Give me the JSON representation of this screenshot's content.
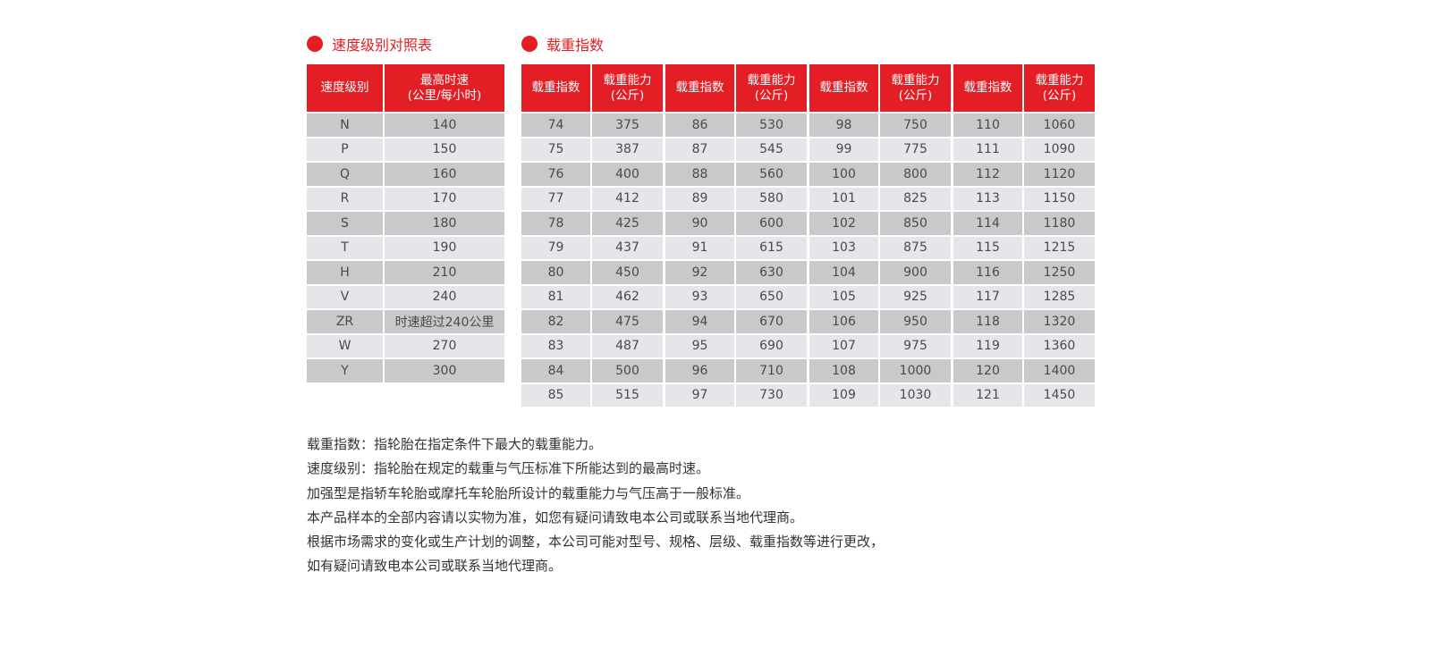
{
  "colors": {
    "accent": "#e31e24",
    "row_dark": "#c9c8cb",
    "row_light": "#e6e5e9"
  },
  "speed": {
    "title": "速度级别对照表",
    "headers": [
      "速度级别",
      "最高时速\n(公里/每小时)"
    ],
    "rows": [
      [
        "N",
        "140"
      ],
      [
        "P",
        "150"
      ],
      [
        "Q",
        "160"
      ],
      [
        "R",
        "170"
      ],
      [
        "S",
        "180"
      ],
      [
        "T",
        "190"
      ],
      [
        "H",
        "210"
      ],
      [
        "V",
        "240"
      ],
      [
        "ZR",
        "时速超过240公里"
      ],
      [
        "W",
        "270"
      ],
      [
        "Y",
        "300"
      ]
    ]
  },
  "load": {
    "title": "载重指数",
    "headers": [
      "载重指数",
      "载重能力\n(公斤)"
    ],
    "tables": [
      [
        [
          "74",
          "375"
        ],
        [
          "75",
          "387"
        ],
        [
          "76",
          "400"
        ],
        [
          "77",
          "412"
        ],
        [
          "78",
          "425"
        ],
        [
          "79",
          "437"
        ],
        [
          "80",
          "450"
        ],
        [
          "81",
          "462"
        ],
        [
          "82",
          "475"
        ],
        [
          "83",
          "487"
        ],
        [
          "84",
          "500"
        ],
        [
          "85",
          "515"
        ]
      ],
      [
        [
          "86",
          "530"
        ],
        [
          "87",
          "545"
        ],
        [
          "88",
          "560"
        ],
        [
          "89",
          "580"
        ],
        [
          "90",
          "600"
        ],
        [
          "91",
          "615"
        ],
        [
          "92",
          "630"
        ],
        [
          "93",
          "650"
        ],
        [
          "94",
          "670"
        ],
        [
          "95",
          "690"
        ],
        [
          "96",
          "710"
        ],
        [
          "97",
          "730"
        ]
      ],
      [
        [
          "98",
          "750"
        ],
        [
          "99",
          "775"
        ],
        [
          "100",
          "800"
        ],
        [
          "101",
          "825"
        ],
        [
          "102",
          "850"
        ],
        [
          "103",
          "875"
        ],
        [
          "104",
          "900"
        ],
        [
          "105",
          "925"
        ],
        [
          "106",
          "950"
        ],
        [
          "107",
          "975"
        ],
        [
          "108",
          "1000"
        ],
        [
          "109",
          "1030"
        ]
      ],
      [
        [
          "110",
          "1060"
        ],
        [
          "111",
          "1090"
        ],
        [
          "112",
          "1120"
        ],
        [
          "113",
          "1150"
        ],
        [
          "114",
          "1180"
        ],
        [
          "115",
          "1215"
        ],
        [
          "116",
          "1250"
        ],
        [
          "117",
          "1285"
        ],
        [
          "118",
          "1320"
        ],
        [
          "119",
          "1360"
        ],
        [
          "120",
          "1400"
        ],
        [
          "121",
          "1450"
        ]
      ]
    ]
  },
  "notes": [
    "载重指数：指轮胎在指定条件下最大的载重能力。",
    "速度级别：指轮胎在规定的载重与气压标准下所能达到的最高时速。",
    "加强型是指轿车轮胎或摩托车轮胎所设计的载重能力与气压高于一般标准。",
    "本产品样本的全部内容请以实物为准，如您有疑问请致电本公司或联系当地代理商。",
    "根据市场需求的变化或生产计划的调整，本公司可能对型号、规格、层级、载重指数等进行更改，",
    "如有疑问请致电本公司或联系当地代理商。"
  ]
}
